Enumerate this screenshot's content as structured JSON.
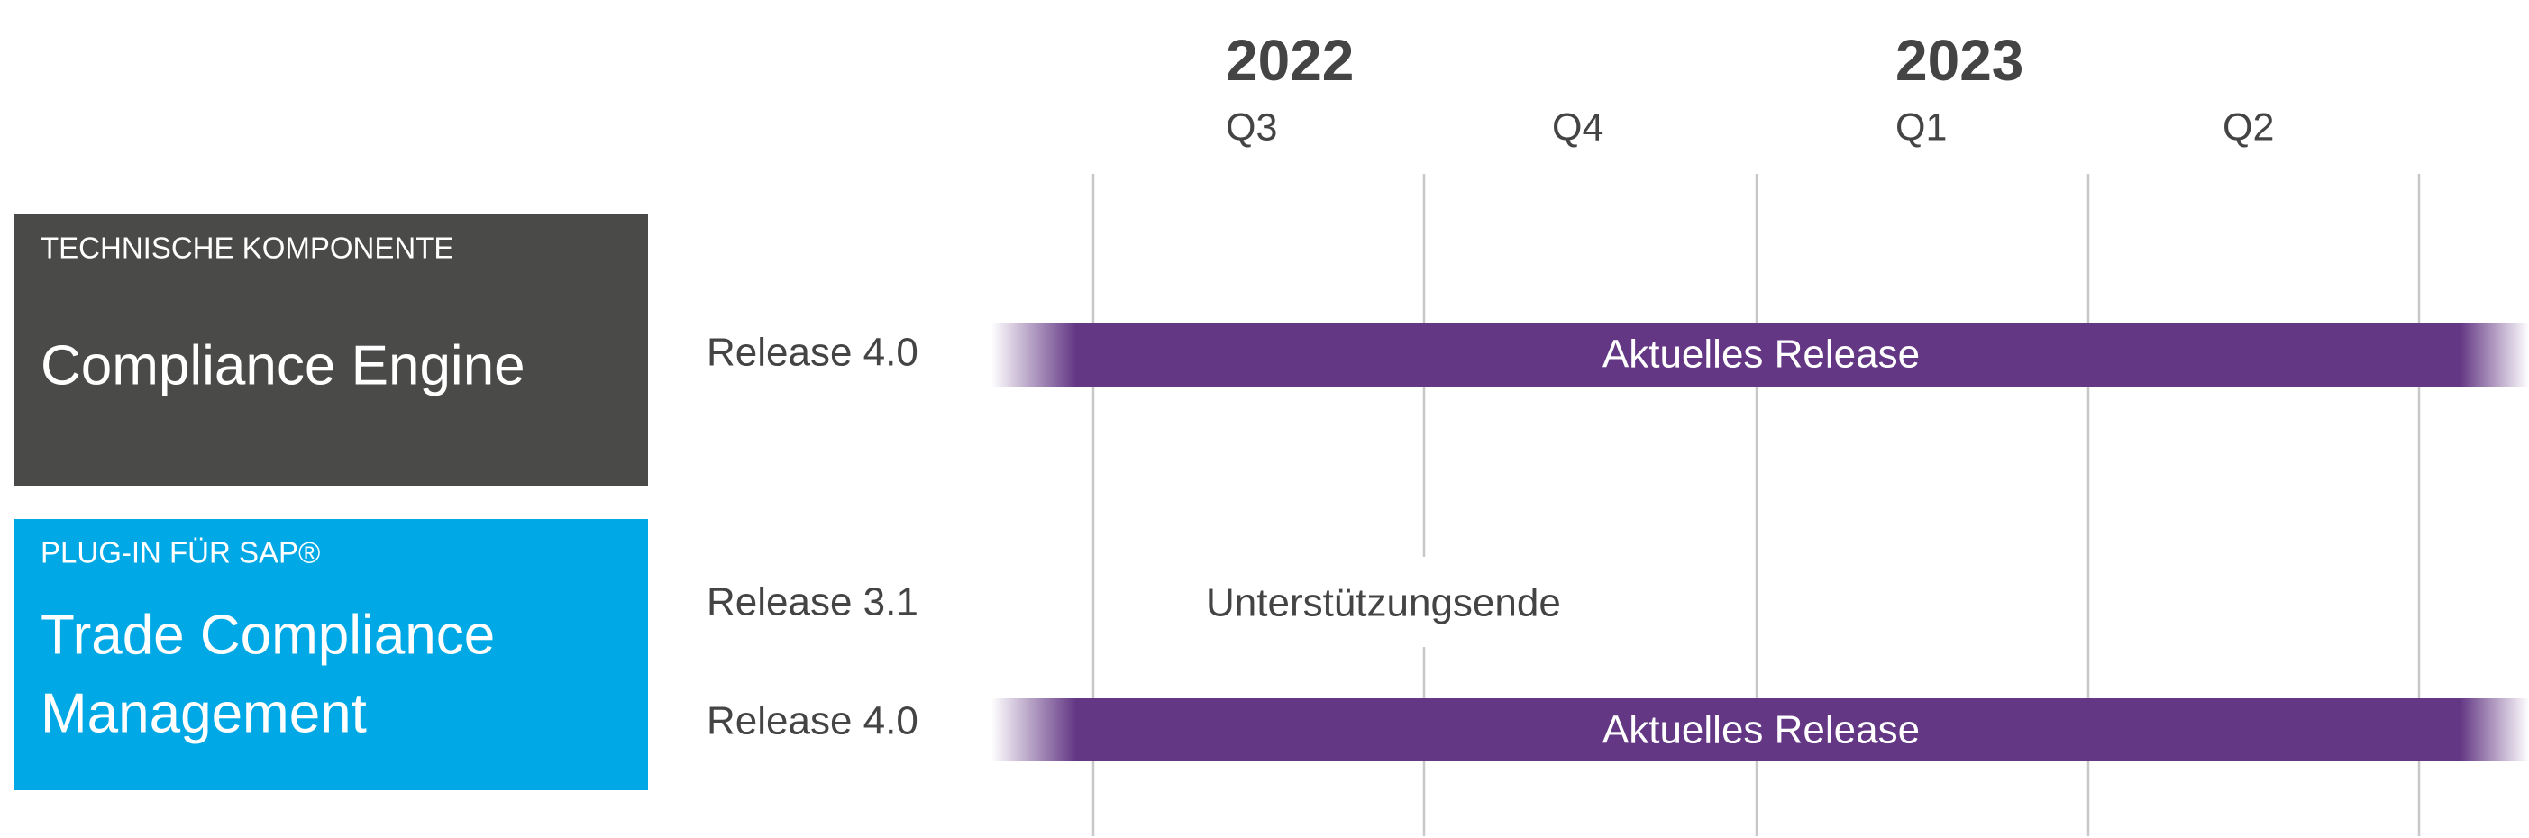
{
  "timeline": {
    "years": [
      "2022",
      "2023"
    ],
    "quarters": [
      "Q3",
      "Q4",
      "Q1",
      "Q2"
    ]
  },
  "components": [
    {
      "category": "TECHNISCHE KOMPONENTE",
      "name": [
        "Compliance Engine"
      ],
      "releases": [
        {
          "label": "Release 4.0",
          "status": "Aktuelles Release"
        }
      ]
    },
    {
      "category": "PLUG-IN FÜR SAP®",
      "name": [
        "Trade Compliance",
        "Management"
      ],
      "releases": [
        {
          "label": "Release 3.1",
          "status": "Unterstützungsende"
        },
        {
          "label": "Release 4.0",
          "status": "Aktuelles Release"
        }
      ]
    }
  ]
}
